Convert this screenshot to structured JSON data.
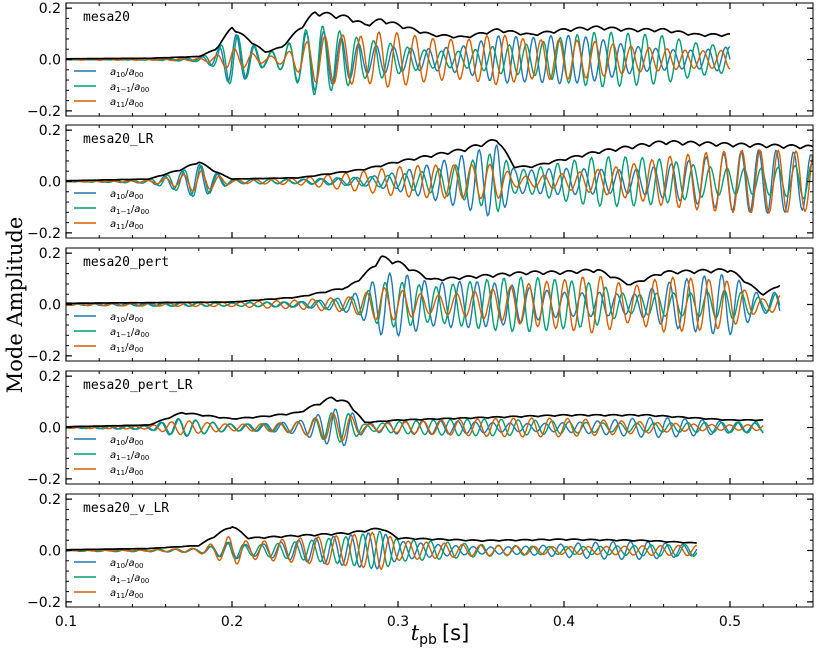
{
  "chart_data": {
    "type": "line",
    "ylabel": "Mode Amplitude",
    "xlabel_main": "t",
    "xlabel_sub": "pb",
    "xlabel_unit": "[s]",
    "xlim": [
      0.1,
      0.55
    ],
    "ylim": [
      -0.22,
      0.22
    ],
    "xticks": [
      0.1,
      0.2,
      0.3,
      0.4,
      0.5
    ],
    "xtick_labels": [
      "0.1",
      "0.2",
      "0.3",
      "0.4",
      "0.5"
    ],
    "yticks": [
      -0.2,
      0.0,
      0.2
    ],
    "ytick_labels": [
      "−0.2",
      "0.0",
      "0.2"
    ],
    "colors": {
      "a10": "#1f77b4",
      "a1m1": "#009e73",
      "a11": "#d55e00",
      "total": "#000000"
    },
    "legend": [
      {
        "key": "a10",
        "base": "a",
        "sub": "10",
        "sep": "/",
        "base2": "a",
        "sub2": "00"
      },
      {
        "key": "a1m1",
        "base": "a",
        "sub": "1−1",
        "sep": "/",
        "base2": "a",
        "sub2": "00"
      },
      {
        "key": "a11",
        "base": "a",
        "sub": "11",
        "sep": "/",
        "base2": "a",
        "sub2": "00"
      }
    ],
    "panels": [
      {
        "name": "mesa20",
        "t_end": 0.5,
        "envelope_t": [
          0.1,
          0.15,
          0.18,
          0.19,
          0.2,
          0.22,
          0.23,
          0.24,
          0.25,
          0.26,
          0.27,
          0.28,
          0.29,
          0.3,
          0.32,
          0.34,
          0.36,
          0.38,
          0.4,
          0.42,
          0.44,
          0.46,
          0.48,
          0.5
        ],
        "envelope_v": [
          0.003,
          0.005,
          0.012,
          0.04,
          0.13,
          0.03,
          0.05,
          0.12,
          0.19,
          0.18,
          0.17,
          0.14,
          0.16,
          0.14,
          0.1,
          0.09,
          0.12,
          0.1,
          0.12,
          0.13,
          0.12,
          0.12,
          0.1,
          0.1
        ]
      },
      {
        "name": "mesa20_LR",
        "t_end": 0.55,
        "envelope_t": [
          0.1,
          0.15,
          0.17,
          0.18,
          0.19,
          0.2,
          0.24,
          0.28,
          0.3,
          0.34,
          0.36,
          0.37,
          0.38,
          0.42,
          0.46,
          0.5,
          0.55
        ],
        "envelope_v": [
          0.003,
          0.01,
          0.05,
          0.08,
          0.04,
          0.01,
          0.015,
          0.05,
          0.08,
          0.13,
          0.17,
          0.06,
          0.06,
          0.12,
          0.16,
          0.15,
          0.14
        ]
      },
      {
        "name": "mesa20_pert",
        "t_end": 0.53,
        "envelope_t": [
          0.1,
          0.2,
          0.24,
          0.27,
          0.28,
          0.29,
          0.3,
          0.32,
          0.34,
          0.36,
          0.38,
          0.4,
          0.42,
          0.44,
          0.46,
          0.5,
          0.52,
          0.53
        ],
        "envelope_v": [
          0.005,
          0.01,
          0.03,
          0.07,
          0.12,
          0.19,
          0.17,
          0.1,
          0.11,
          0.12,
          0.13,
          0.13,
          0.14,
          0.08,
          0.13,
          0.14,
          0.04,
          0.08
        ]
      },
      {
        "name": "mesa20_pert_LR",
        "t_end": 0.52,
        "envelope_t": [
          0.1,
          0.15,
          0.17,
          0.2,
          0.22,
          0.24,
          0.26,
          0.27,
          0.28,
          0.3,
          0.35,
          0.4,
          0.45,
          0.5,
          0.52
        ],
        "envelope_v": [
          0.003,
          0.01,
          0.06,
          0.035,
          0.045,
          0.06,
          0.12,
          0.1,
          0.02,
          0.03,
          0.04,
          0.05,
          0.05,
          0.03,
          0.03
        ]
      },
      {
        "name": "mesa20_v_LR",
        "t_end": 0.48,
        "envelope_t": [
          0.1,
          0.15,
          0.18,
          0.2,
          0.21,
          0.24,
          0.27,
          0.29,
          0.3,
          0.35,
          0.4,
          0.45,
          0.48
        ],
        "envelope_v": [
          0.003,
          0.008,
          0.02,
          0.1,
          0.05,
          0.06,
          0.07,
          0.09,
          0.05,
          0.04,
          0.045,
          0.04,
          0.03
        ]
      }
    ]
  }
}
